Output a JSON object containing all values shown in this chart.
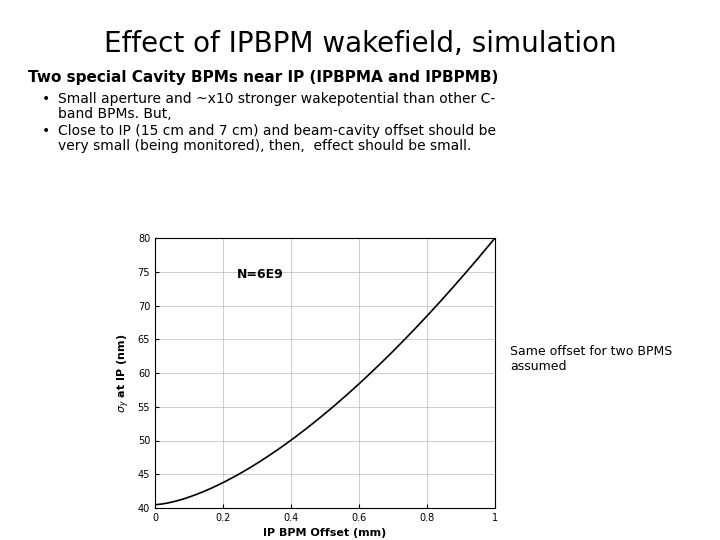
{
  "title": "Effect of IPBPM wakefield, simulation",
  "subtitle": "Two special Cavity BPMs near IP (IPBPMA and IPBPMB)",
  "bullet1_line1": "Small aperture and ~x10 stronger wakepotential than other C-",
  "bullet1_line2": "band BPMs. But,",
  "bullet2_line1": "Close to IP (15 cm and 7 cm) and beam-cavity offset should be",
  "bullet2_line2": "very small (being monitored), then,  effect should be small.",
  "annotation_label": "N=6E9",
  "side_note_line1": "Same offset for two BPMS",
  "side_note_line2": "assumed",
  "xlabel": "IP BPM Offset (mm)",
  "ylabel_line1": "σ",
  "ylabel": "σₙ at IP (nm)",
  "xlim": [
    0,
    1.0
  ],
  "ylim": [
    40,
    80
  ],
  "xticks": [
    0,
    0.2,
    0.4,
    0.6,
    0.8,
    1.0
  ],
  "yticks": [
    40,
    45,
    50,
    55,
    60,
    65,
    70,
    75,
    80
  ],
  "bg_color": "#ffffff",
  "line_color": "#000000",
  "grid_color": "#aaaacc",
  "title_fontsize": 20,
  "subtitle_fontsize": 11,
  "bullet_fontsize": 10,
  "axis_label_fontsize": 8,
  "tick_fontsize": 7,
  "annotation_fontsize": 9,
  "sidenote_fontsize": 9,
  "sigma0": 40.5,
  "a_coef": 39.5,
  "n_pow": 1.55
}
